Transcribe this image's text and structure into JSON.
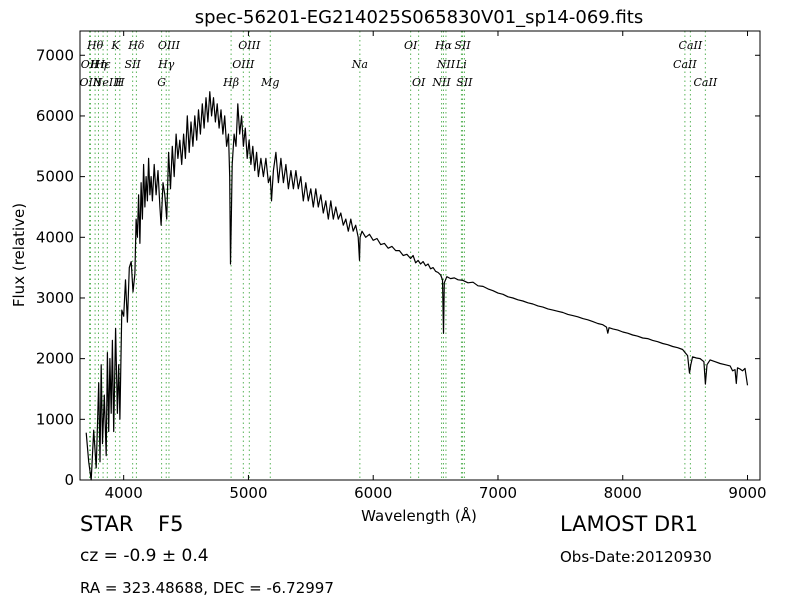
{
  "header": {
    "title": "spec-56201-EG214025S065830V01_sp14-069.fits"
  },
  "footer": {
    "obj_class": "STAR",
    "obj_subclass": "F5",
    "survey": "LAMOST DR1",
    "cz_text": "cz = -0.9  ± 0.4",
    "obs_date": "Obs-Date:20120930",
    "coords": "RA = 323.48688, DEC = -6.72997"
  },
  "colors": {
    "spectrum": "#000000",
    "line_markers": "#59b359",
    "axes": "#000000"
  },
  "chart_data": {
    "type": "line",
    "xlabel": "Wavelength (Å)",
    "ylabel": "Flux (relative)",
    "xlim": [
      3650,
      9100
    ],
    "ylim": [
      0,
      7400
    ],
    "xticks": [
      4000,
      5000,
      6000,
      7000,
      8000,
      9000
    ],
    "yticks": [
      0,
      1000,
      2000,
      3000,
      4000,
      5000,
      6000,
      7000
    ],
    "grid": false,
    "series": [
      {
        "points": [
          [
            3700,
            780
          ],
          [
            3720,
            300
          ],
          [
            3740,
            0
          ],
          [
            3760,
            820
          ],
          [
            3780,
            200
          ],
          [
            3800,
            1600
          ],
          [
            3810,
            300
          ],
          [
            3820,
            1900
          ],
          [
            3830,
            600
          ],
          [
            3845,
            1400
          ],
          [
            3860,
            400
          ],
          [
            3870,
            2100
          ],
          [
            3880,
            800
          ],
          [
            3890,
            2000
          ],
          [
            3900,
            1100
          ],
          [
            3910,
            2300
          ],
          [
            3920,
            800
          ],
          [
            3935,
            2500
          ],
          [
            3950,
            1100
          ],
          [
            3960,
            1900
          ],
          [
            3970,
            1000
          ],
          [
            3985,
            2800
          ],
          [
            4000,
            2700
          ],
          [
            4015,
            3300
          ],
          [
            4030,
            2600
          ],
          [
            4045,
            3500
          ],
          [
            4060,
            3600
          ],
          [
            4075,
            3100
          ],
          [
            4090,
            3400
          ],
          [
            4100,
            4300
          ],
          [
            4110,
            4000
          ],
          [
            4120,
            4700
          ],
          [
            4130,
            3900
          ],
          [
            4140,
            4900
          ],
          [
            4150,
            4300
          ],
          [
            4160,
            5200
          ],
          [
            4170,
            4500
          ],
          [
            4180,
            5000
          ],
          [
            4190,
            4600
          ],
          [
            4200,
            5300
          ],
          [
            4210,
            4700
          ],
          [
            4220,
            5000
          ],
          [
            4230,
            4600
          ],
          [
            4245,
            5200
          ],
          [
            4260,
            4700
          ],
          [
            4275,
            5100
          ],
          [
            4290,
            4500
          ],
          [
            4300,
            4200
          ],
          [
            4315,
            4900
          ],
          [
            4330,
            4700
          ],
          [
            4345,
            4300
          ],
          [
            4360,
            5400
          ],
          [
            4375,
            4800
          ],
          [
            4390,
            5500
          ],
          [
            4405,
            5000
          ],
          [
            4420,
            5700
          ],
          [
            4435,
            5300
          ],
          [
            4450,
            5600
          ],
          [
            4465,
            5200
          ],
          [
            4480,
            5700
          ],
          [
            4495,
            5300
          ],
          [
            4510,
            6000
          ],
          [
            4525,
            5400
          ],
          [
            4540,
            5900
          ],
          [
            4555,
            5500
          ],
          [
            4570,
            6000
          ],
          [
            4585,
            5600
          ],
          [
            4600,
            6100
          ],
          [
            4615,
            5700
          ],
          [
            4630,
            6200
          ],
          [
            4645,
            5800
          ],
          [
            4660,
            6300
          ],
          [
            4675,
            5900
          ],
          [
            4690,
            6400
          ],
          [
            4705,
            6000
          ],
          [
            4720,
            6300
          ],
          [
            4735,
            5900
          ],
          [
            4750,
            6200
          ],
          [
            4765,
            5800
          ],
          [
            4780,
            6100
          ],
          [
            4795,
            5700
          ],
          [
            4810,
            6000
          ],
          [
            4825,
            5500
          ],
          [
            4840,
            5700
          ],
          [
            4850,
            5000
          ],
          [
            4856,
            3560
          ],
          [
            4862,
            4200
          ],
          [
            4870,
            5200
          ],
          [
            4885,
            5700
          ],
          [
            4900,
            5500
          ],
          [
            4915,
            6200
          ],
          [
            4930,
            5700
          ],
          [
            4945,
            6000
          ],
          [
            4960,
            5500
          ],
          [
            4975,
            5800
          ],
          [
            4990,
            5300
          ],
          [
            5005,
            5600
          ],
          [
            5020,
            5200
          ],
          [
            5035,
            5500
          ],
          [
            5050,
            5100
          ],
          [
            5065,
            5400
          ],
          [
            5080,
            5000
          ],
          [
            5100,
            5300
          ],
          [
            5120,
            5000
          ],
          [
            5140,
            5300
          ],
          [
            5160,
            4900
          ],
          [
            5175,
            5000
          ],
          [
            5185,
            4600
          ],
          [
            5200,
            5100
          ],
          [
            5220,
            5400
          ],
          [
            5240,
            4900
          ],
          [
            5260,
            5300
          ],
          [
            5280,
            4900
          ],
          [
            5300,
            5200
          ],
          [
            5320,
            4800
          ],
          [
            5340,
            5100
          ],
          [
            5360,
            4800
          ],
          [
            5380,
            5100
          ],
          [
            5400,
            4800
          ],
          [
            5420,
            5000
          ],
          [
            5440,
            4600
          ],
          [
            5460,
            4900
          ],
          [
            5480,
            4600
          ],
          [
            5500,
            4800
          ],
          [
            5520,
            4500
          ],
          [
            5540,
            4800
          ],
          [
            5560,
            4500
          ],
          [
            5580,
            4700
          ],
          [
            5600,
            4400
          ],
          [
            5620,
            4600
          ],
          [
            5640,
            4300
          ],
          [
            5660,
            4600
          ],
          [
            5680,
            4300
          ],
          [
            5700,
            4500
          ],
          [
            5720,
            4300
          ],
          [
            5740,
            4400
          ],
          [
            5760,
            4200
          ],
          [
            5780,
            4300
          ],
          [
            5800,
            4100
          ],
          [
            5820,
            4300
          ],
          [
            5840,
            4100
          ],
          [
            5860,
            4200
          ],
          [
            5880,
            4000
          ],
          [
            5890,
            3620
          ],
          [
            5895,
            4000
          ],
          [
            5910,
            4100
          ],
          [
            5940,
            4000
          ],
          [
            5970,
            4050
          ],
          [
            6000,
            3950
          ],
          [
            6030,
            3980
          ],
          [
            6060,
            3880
          ],
          [
            6090,
            3900
          ],
          [
            6120,
            3820
          ],
          [
            6150,
            3850
          ],
          [
            6180,
            3780
          ],
          [
            6210,
            3780
          ],
          [
            6240,
            3700
          ],
          [
            6270,
            3720
          ],
          [
            6300,
            3650
          ],
          [
            6320,
            3700
          ],
          [
            6340,
            3580
          ],
          [
            6360,
            3620
          ],
          [
            6380,
            3560
          ],
          [
            6400,
            3600
          ],
          [
            6420,
            3530
          ],
          [
            6440,
            3560
          ],
          [
            6460,
            3480
          ],
          [
            6480,
            3500
          ],
          [
            6500,
            3440
          ],
          [
            6520,
            3420
          ],
          [
            6540,
            3380
          ],
          [
            6555,
            3300
          ],
          [
            6563,
            2420
          ],
          [
            6570,
            3250
          ],
          [
            6590,
            3350
          ],
          [
            6620,
            3320
          ],
          [
            6650,
            3330
          ],
          [
            6680,
            3300
          ],
          [
            6720,
            3290
          ],
          [
            6760,
            3250
          ],
          [
            6800,
            3260
          ],
          [
            6840,
            3200
          ],
          [
            6880,
            3190
          ],
          [
            6920,
            3150
          ],
          [
            6960,
            3120
          ],
          [
            7000,
            3080
          ],
          [
            7040,
            3060
          ],
          [
            7080,
            3020
          ],
          [
            7120,
            3000
          ],
          [
            7160,
            2970
          ],
          [
            7200,
            2950
          ],
          [
            7240,
            2920
          ],
          [
            7280,
            2900
          ],
          [
            7320,
            2870
          ],
          [
            7360,
            2850
          ],
          [
            7400,
            2820
          ],
          [
            7440,
            2800
          ],
          [
            7480,
            2780
          ],
          [
            7520,
            2760
          ],
          [
            7560,
            2730
          ],
          [
            7600,
            2710
          ],
          [
            7640,
            2690
          ],
          [
            7680,
            2660
          ],
          [
            7720,
            2640
          ],
          [
            7760,
            2610
          ],
          [
            7800,
            2580
          ],
          [
            7840,
            2560
          ],
          [
            7870,
            2520
          ],
          [
            7880,
            2420
          ],
          [
            7890,
            2510
          ],
          [
            7920,
            2490
          ],
          [
            7960,
            2470
          ],
          [
            8000,
            2440
          ],
          [
            8040,
            2420
          ],
          [
            8080,
            2390
          ],
          [
            8120,
            2370
          ],
          [
            8160,
            2340
          ],
          [
            8200,
            2330
          ],
          [
            8240,
            2300
          ],
          [
            8280,
            2280
          ],
          [
            8320,
            2250
          ],
          [
            8360,
            2230
          ],
          [
            8400,
            2200
          ],
          [
            8440,
            2180
          ],
          [
            8480,
            2150
          ],
          [
            8500,
            2100
          ],
          [
            8520,
            2050
          ],
          [
            8535,
            1760
          ],
          [
            8545,
            1900
          ],
          [
            8560,
            2030
          ],
          [
            8590,
            2010
          ],
          [
            8620,
            2000
          ],
          [
            8650,
            1950
          ],
          [
            8662,
            1580
          ],
          [
            8675,
            1900
          ],
          [
            8700,
            1980
          ],
          [
            8740,
            1950
          ],
          [
            8780,
            1920
          ],
          [
            8820,
            1900
          ],
          [
            8860,
            1880
          ],
          [
            8880,
            1800
          ],
          [
            8900,
            1820
          ],
          [
            8910,
            1590
          ],
          [
            8920,
            1850
          ],
          [
            8940,
            1830
          ],
          [
            8960,
            1800
          ],
          [
            8980,
            1840
          ],
          [
            9000,
            1560
          ]
        ]
      }
    ],
    "lines": [
      {
        "wl": 3727,
        "label": "OII",
        "tier": 1
      },
      {
        "wl": 3734,
        "label": "OIII",
        "tier": 2
      },
      {
        "wl": 3771,
        "label": "Hθ",
        "tier": 0
      },
      {
        "wl": 3798,
        "label": "Hη",
        "tier": 1
      },
      {
        "wl": 3835,
        "label": "Hε",
        "tier": 1
      },
      {
        "wl": 3869,
        "label": "NeIII",
        "tier": 2
      },
      {
        "wl": 3934,
        "label": "K",
        "tier": 0
      },
      {
        "wl": 3969,
        "label": "H",
        "tier": 2
      },
      {
        "wl": 4072,
        "label": "SII",
        "tier": 1
      },
      {
        "wl": 4102,
        "label": "Hδ",
        "tier": 0
      },
      {
        "wl": 4304,
        "label": "G",
        "tier": 2
      },
      {
        "wl": 4341,
        "label": "Hγ",
        "tier": 1
      },
      {
        "wl": 4363,
        "label": "OIII",
        "tier": 0
      },
      {
        "wl": 4861,
        "label": "Hβ",
        "tier": 2
      },
      {
        "wl": 4959,
        "label": "OIII",
        "tier": 1
      },
      {
        "wl": 5007,
        "label": "OIII",
        "tier": 0
      },
      {
        "wl": 5175,
        "label": "Mg",
        "tier": 2
      },
      {
        "wl": 5893,
        "label": "Na",
        "tier": 1
      },
      {
        "wl": 6300,
        "label": "OI",
        "tier": 0
      },
      {
        "wl": 6364,
        "label": "OI",
        "tier": 2
      },
      {
        "wl": 6548,
        "label": "NII",
        "tier": 2
      },
      {
        "wl": 6563,
        "label": "Hα",
        "tier": 0
      },
      {
        "wl": 6583,
        "label": "NII",
        "tier": 1
      },
      {
        "wl": 6707,
        "label": "Li",
        "tier": 1
      },
      {
        "wl": 6716,
        "label": "SII",
        "tier": 0
      },
      {
        "wl": 6731,
        "label": "SII",
        "tier": 2
      },
      {
        "wl": 8498,
        "label": "CaII",
        "tier": 1
      },
      {
        "wl": 8542,
        "label": "CaII",
        "tier": 0
      },
      {
        "wl": 8662,
        "label": "CaII",
        "tier": 2
      }
    ]
  }
}
